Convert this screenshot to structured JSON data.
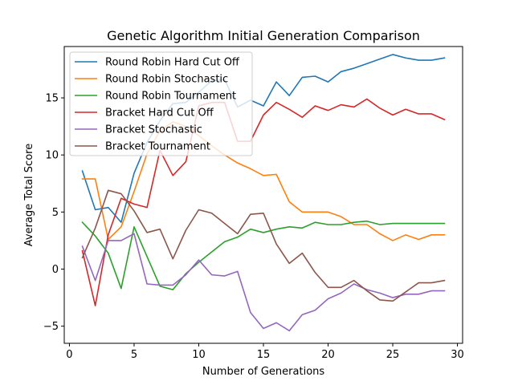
{
  "chart_data": {
    "type": "line",
    "title": "Genetic Algorithm Initial Generation Comparison",
    "xlabel": "Number of Generations",
    "ylabel": "Average Total Score",
    "xlim": [
      -0.4,
      30.4
    ],
    "ylim": [
      -6.5,
      19.5
    ],
    "xticks": [
      0,
      5,
      10,
      15,
      20,
      25,
      30
    ],
    "yticks": [
      -5,
      0,
      5,
      10,
      15
    ],
    "grid": false,
    "legend_position": "top-left",
    "x": [
      1,
      2,
      3,
      4,
      5,
      6,
      7,
      8,
      9,
      10,
      11,
      12,
      13,
      14,
      15,
      16,
      17,
      18,
      19,
      20,
      21,
      22,
      23,
      24,
      25,
      26,
      27,
      28,
      29
    ],
    "series": [
      {
        "name": "Round Robin Hard Cut Off",
        "color": "#1f77b4",
        "values": [
          8.6,
          5.2,
          5.4,
          4.1,
          8.4,
          11.1,
          13.0,
          14.5,
          14.6,
          15.5,
          16.5,
          16.6,
          14.2,
          14.8,
          14.3,
          16.4,
          15.2,
          16.8,
          16.9,
          16.4,
          17.3,
          17.6,
          18.0,
          18.4,
          18.8,
          18.5,
          18.3,
          18.3,
          18.5
        ]
      },
      {
        "name": "Round Robin Stochastic",
        "color": "#ff7f0e",
        "values": [
          7.9,
          7.9,
          2.6,
          3.7,
          6.8,
          10.1,
          12.1,
          12.9,
          12.5,
          11.7,
          10.8,
          10.0,
          9.3,
          8.8,
          8.2,
          8.3,
          5.9,
          5.0,
          5.0,
          5.0,
          4.6,
          3.9,
          3.9,
          3.1,
          2.5,
          3.0,
          2.6,
          3.0,
          3.0
        ]
      },
      {
        "name": "Round Robin Tournament",
        "color": "#2ca02c",
        "values": [
          4.1,
          2.9,
          1.4,
          -1.7,
          3.7,
          1.1,
          -1.5,
          -1.8,
          -0.4,
          0.6,
          1.5,
          2.4,
          2.8,
          3.5,
          3.2,
          3.5,
          3.7,
          3.6,
          4.1,
          3.9,
          3.9,
          4.1,
          4.2,
          3.9,
          4.0,
          4.0,
          4.0,
          4.0,
          4.0
        ]
      },
      {
        "name": "Bracket Hard Cut Off",
        "color": "#d62728",
        "values": [
          1.6,
          -3.2,
          3.0,
          6.2,
          5.7,
          5.4,
          10.4,
          8.2,
          9.4,
          14.3,
          14.6,
          14.6,
          11.2,
          11.2,
          13.5,
          14.6,
          14.0,
          13.3,
          14.3,
          13.9,
          14.4,
          14.2,
          14.9,
          14.1,
          13.5,
          14.0,
          13.6,
          13.6,
          13.1
        ]
      },
      {
        "name": "Bracket Stochastic",
        "color": "#9467bd",
        "values": [
          2.0,
          -1.0,
          2.5,
          2.5,
          3.1,
          -1.3,
          -1.4,
          -1.4,
          -0.5,
          0.8,
          -0.5,
          -0.6,
          -0.2,
          -3.8,
          -5.2,
          -4.7,
          -5.4,
          -4.0,
          -3.6,
          -2.6,
          -2.1,
          -1.3,
          -1.8,
          -2.1,
          -2.5,
          -2.2,
          -2.2,
          -1.9,
          -1.9
        ]
      },
      {
        "name": "Bracket Tournament",
        "color": "#8c564b",
        "values": [
          1.0,
          3.6,
          6.9,
          6.6,
          5.1,
          3.2,
          3.5,
          0.9,
          3.4,
          5.2,
          4.9,
          4.0,
          3.1,
          4.8,
          4.9,
          2.2,
          0.5,
          1.4,
          -0.3,
          -1.6,
          -1.6,
          -1.0,
          -1.9,
          -2.7,
          -2.8,
          -2.0,
          -1.2,
          -1.2,
          -1.0
        ]
      }
    ]
  }
}
